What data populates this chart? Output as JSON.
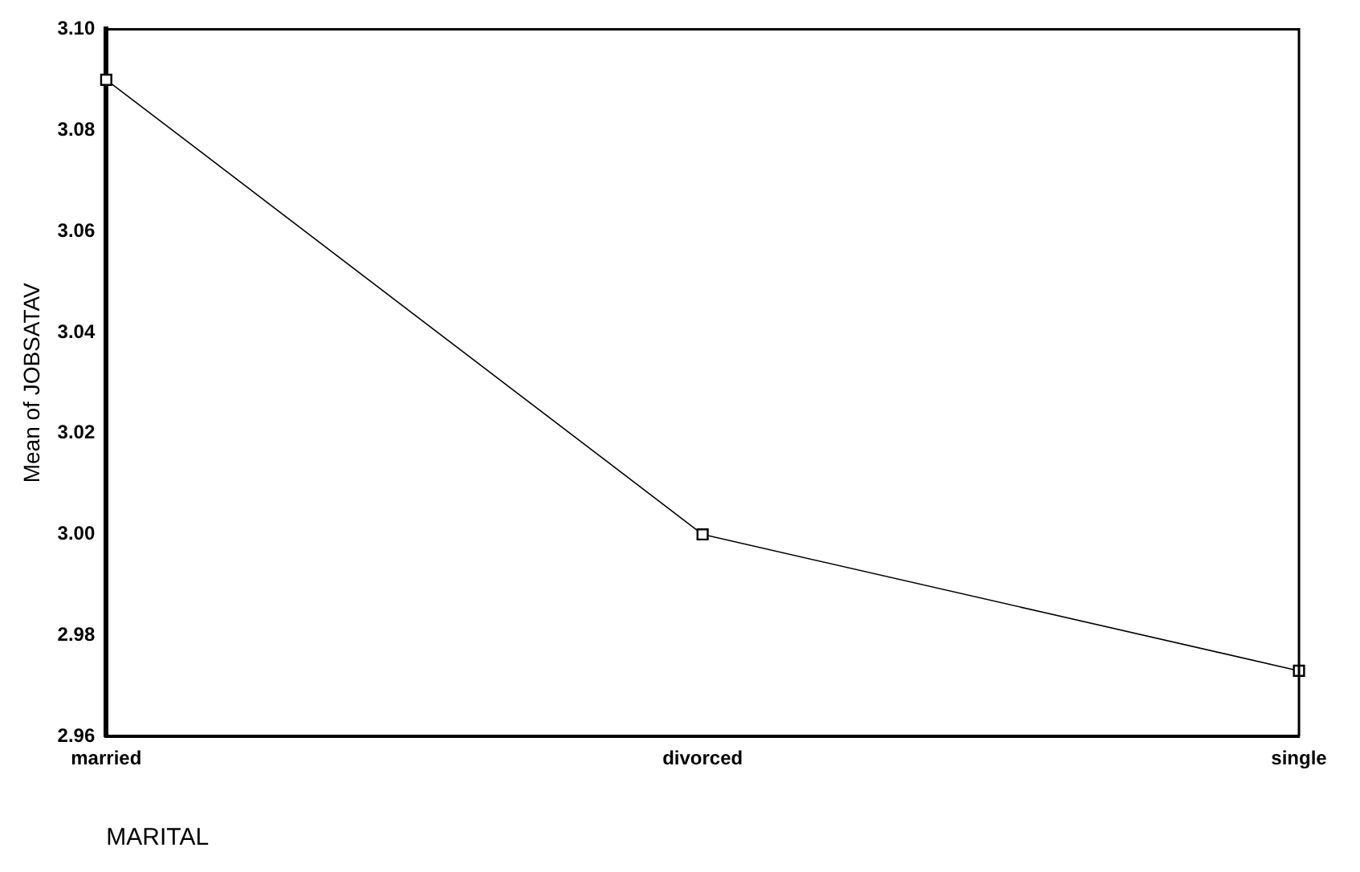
{
  "chart_data": {
    "type": "line",
    "xlabel": "MARITAL",
    "ylabel": "Mean of JOBSATAV",
    "categories": [
      "married",
      "divorced",
      "single"
    ],
    "series": [
      {
        "color": "#000000",
        "values": [
          3.09,
          3.0,
          2.973
        ]
      }
    ],
    "ylim": [
      2.96,
      3.1
    ],
    "yticks": [
      {
        "value": 2.96,
        "label": "2.96"
      },
      {
        "value": 2.98,
        "label": "2.98"
      },
      {
        "value": 3.0,
        "label": "3.00"
      },
      {
        "value": 3.02,
        "label": "3.02"
      },
      {
        "value": 3.04,
        "label": "3.04"
      },
      {
        "value": 3.06,
        "label": "3.06"
      },
      {
        "value": 3.08,
        "label": "3.08"
      },
      {
        "value": 3.1,
        "label": "3.10"
      }
    ],
    "grid": false,
    "legend": false,
    "marker": "square",
    "line_style": "solid"
  }
}
